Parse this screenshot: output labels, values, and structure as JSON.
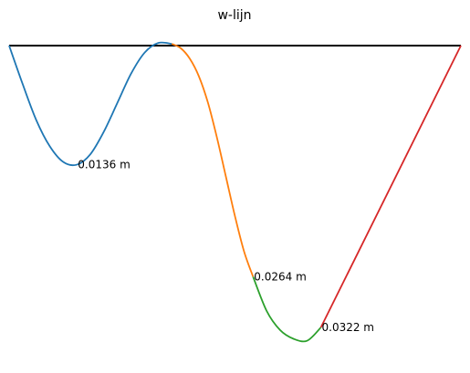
{
  "chart_data": {
    "type": "line",
    "title": "w-lijn",
    "xlabel": "",
    "ylabel": "",
    "axes_visible": false,
    "grid": false,
    "baseline_color": "#000000",
    "y_units": "m",
    "y_direction": "deflection drawn downward",
    "series": [
      {
        "color": "#1f77b4",
        "points": [
          [
            0.0,
            0.0
          ],
          [
            0.03,
            0.0044
          ],
          [
            0.06,
            0.0085
          ],
          [
            0.09,
            0.0115
          ],
          [
            0.12,
            0.0133
          ],
          [
            0.15,
            0.0136
          ],
          [
            0.18,
            0.0124
          ],
          [
            0.21,
            0.0098
          ],
          [
            0.24,
            0.0065
          ],
          [
            0.27,
            0.0032
          ],
          [
            0.3,
            0.0008
          ],
          [
            0.33,
            -0.0003
          ],
          [
            0.36,
            -0.0002
          ]
        ]
      },
      {
        "color": "#ff7f0e",
        "points": [
          [
            0.36,
            -0.0002
          ],
          [
            0.38,
            0.0003
          ],
          [
            0.4,
            0.0015
          ],
          [
            0.42,
            0.0035
          ],
          [
            0.44,
            0.0065
          ],
          [
            0.46,
            0.0105
          ],
          [
            0.48,
            0.015
          ],
          [
            0.5,
            0.0195
          ],
          [
            0.52,
            0.0235
          ],
          [
            0.54,
            0.0264
          ]
        ]
      },
      {
        "color": "#2ca02c",
        "points": [
          [
            0.54,
            0.0264
          ],
          [
            0.57,
            0.0303
          ],
          [
            0.6,
            0.0325
          ],
          [
            0.63,
            0.0335
          ],
          [
            0.66,
            0.0337
          ],
          [
            0.69,
            0.0322
          ]
        ]
      },
      {
        "color": "#d62728",
        "points": [
          [
            0.69,
            0.0322
          ],
          [
            1.0,
            0.0
          ]
        ]
      }
    ],
    "annotations": [
      {
        "text": "0.0136 m",
        "x": 0.15,
        "y": 0.0136
      },
      {
        "text": "0.0264 m",
        "x": 0.54,
        "y": 0.0264
      },
      {
        "text": "0.0322 m",
        "x": 0.69,
        "y": 0.0322
      }
    ],
    "xlim": [
      0.0,
      1.0
    ],
    "ylim": [
      -0.0005,
      0.0337
    ]
  }
}
